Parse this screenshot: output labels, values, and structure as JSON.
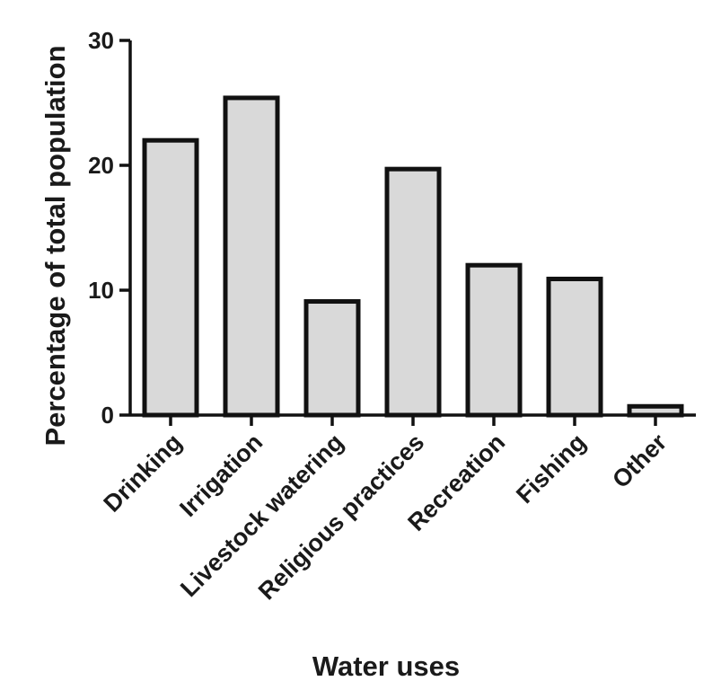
{
  "chart_data": {
    "type": "bar",
    "title": "",
    "xlabel": "Water uses",
    "ylabel": "Percentage of total population",
    "categories": [
      "Drinking",
      "Irrigation",
      "Livestock watering",
      "Religious practices",
      "Recreation",
      "Fishing",
      "Other"
    ],
    "values": [
      22.0,
      25.4,
      9.1,
      19.7,
      12.0,
      10.9,
      0.7
    ],
    "ylim": [
      0,
      30
    ],
    "yticks": [
      "0",
      "10",
      "20",
      "30"
    ],
    "grid": false,
    "legend": "none",
    "colors": {
      "bar_fill": "#d9d9d9",
      "bar_stroke": "#111111",
      "axis": "#111111",
      "text": "#1a1a1a"
    }
  }
}
